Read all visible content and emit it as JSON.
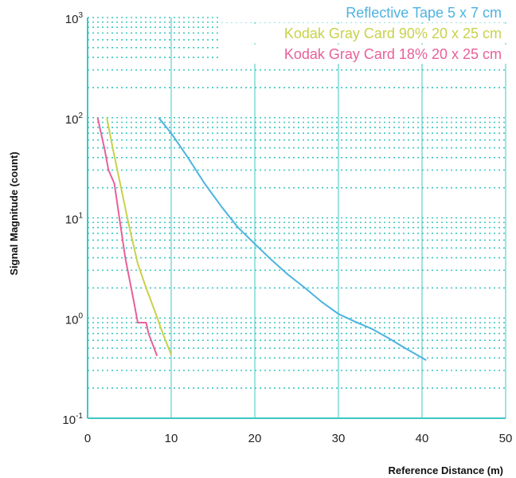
{
  "chart_data": {
    "type": "line",
    "xlabel": "Reference Distance (m)",
    "ylabel": "Signal Magnitude (count)",
    "xlim": [
      0,
      50
    ],
    "ylim_log10": [
      -1,
      3
    ],
    "y_scale": "log",
    "x_ticks": [
      "0",
      "10",
      "20",
      "30",
      "40",
      "50"
    ],
    "y_ticks": [
      {
        "base": "10",
        "exp": "-1"
      },
      {
        "base": "10",
        "exp": "0"
      },
      {
        "base": "10",
        "exp": "1"
      },
      {
        "base": "10",
        "exp": "2"
      },
      {
        "base": "10",
        "exp": "3"
      }
    ],
    "grid": true,
    "legend_position": "top-right",
    "series": [
      {
        "name": "Reflective Tape 5 x 7 cm",
        "color": "#4db3e0",
        "points": [
          [
            8.5,
            100
          ],
          [
            10,
            70
          ],
          [
            12,
            40
          ],
          [
            14,
            22
          ],
          [
            16,
            13
          ],
          [
            18,
            8
          ],
          [
            20,
            5.5
          ],
          [
            22,
            3.8
          ],
          [
            24,
            2.7
          ],
          [
            26,
            2.0
          ],
          [
            28,
            1.45
          ],
          [
            30,
            1.1
          ],
          [
            32,
            0.92
          ],
          [
            34,
            0.78
          ],
          [
            36,
            0.63
          ],
          [
            38,
            0.5
          ],
          [
            40.5,
            0.38
          ]
        ]
      },
      {
        "name": "Kodak Gray Card 90% 20 x 25 cm",
        "color": "#c8d24a",
        "points": [
          [
            2.3,
            100
          ],
          [
            3,
            50
          ],
          [
            4,
            20
          ],
          [
            5,
            8
          ],
          [
            6,
            3.5
          ],
          [
            7,
            2
          ],
          [
            8,
            1.2
          ],
          [
            9,
            0.7
          ],
          [
            10,
            0.43
          ]
        ]
      },
      {
        "name": "Kodak Gray Card 18% 20 x 25 cm",
        "color": "#e8609a",
        "points": [
          [
            1.2,
            100
          ],
          [
            2,
            50
          ],
          [
            2.5,
            30
          ],
          [
            3.2,
            22
          ],
          [
            3.8,
            10
          ],
          [
            4.5,
            4
          ],
          [
            5.5,
            1.5
          ],
          [
            6,
            0.9
          ],
          [
            7,
            0.9
          ],
          [
            7.3,
            0.7
          ],
          [
            8.3,
            0.42
          ]
        ]
      }
    ]
  }
}
